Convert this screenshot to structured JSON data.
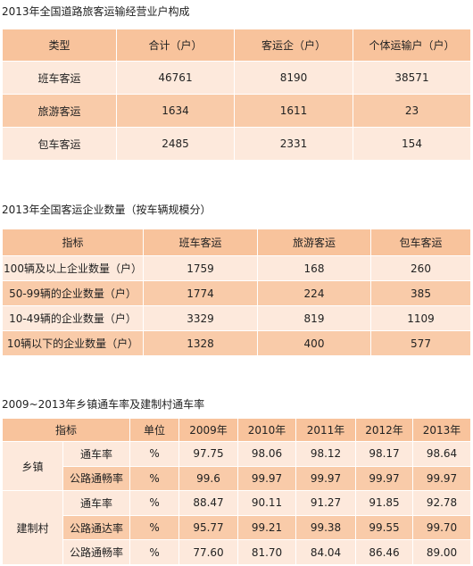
{
  "tables": [
    {
      "title": "2013年全国道路旅客运输经营业户构成",
      "header": [
        "类型",
        "合计（户）",
        "客运企（户）",
        "个体运输户（户）"
      ],
      "rows": [
        [
          "班车客运",
          "46761",
          "8190",
          "38571"
        ],
        [
          "旅游客运",
          "1634",
          "1611",
          "23"
        ],
        [
          "包车客运",
          "2485",
          "2331",
          "154"
        ]
      ]
    },
    {
      "title": "2013年全国客运企业数量（按车辆规模分）",
      "header": [
        "指标",
        "班车客运",
        "旅游客运",
        "包车客运"
      ],
      "rows": [
        [
          "100辆及以上企业数量（户）",
          "1759",
          "168",
          "260"
        ],
        [
          "50-99辆的企业数量（户）",
          "1774",
          "224",
          "385"
        ],
        [
          "10-49辆的企业数量（户）",
          "3329",
          "819",
          "1109"
        ],
        [
          "10辆以下的企业数量（户）",
          "1328",
          "400",
          "577"
        ]
      ]
    },
    {
      "title": "2009~2013年乡镇通车率及建制村通车率",
      "header": [
        "指标",
        "单位",
        "2009年",
        "2010年",
        "2011年",
        "2012年",
        "2013年"
      ],
      "groups": [
        {
          "name": "乡镇",
          "rows": [
            [
              "通车率",
              "%",
              "97.75",
              "98.06",
              "98.12",
              "98.17",
              "98.64"
            ],
            [
              "公路通畅率",
              "%",
              "99.6",
              "99.97",
              "99.97",
              "99.97",
              "99.97"
            ]
          ]
        },
        {
          "name": "建制村",
          "rows": [
            [
              "通车率",
              "%",
              "88.47",
              "90.11",
              "91.27",
              "91.85",
              "92.78"
            ],
            [
              "公路通达率",
              "%",
              "95.77",
              "99.21",
              "99.38",
              "99.55",
              "99.70"
            ],
            [
              "公路通畅率",
              "%",
              "77.60",
              "81.70",
              "84.04",
              "86.46",
              "89.00"
            ]
          ]
        }
      ]
    }
  ]
}
